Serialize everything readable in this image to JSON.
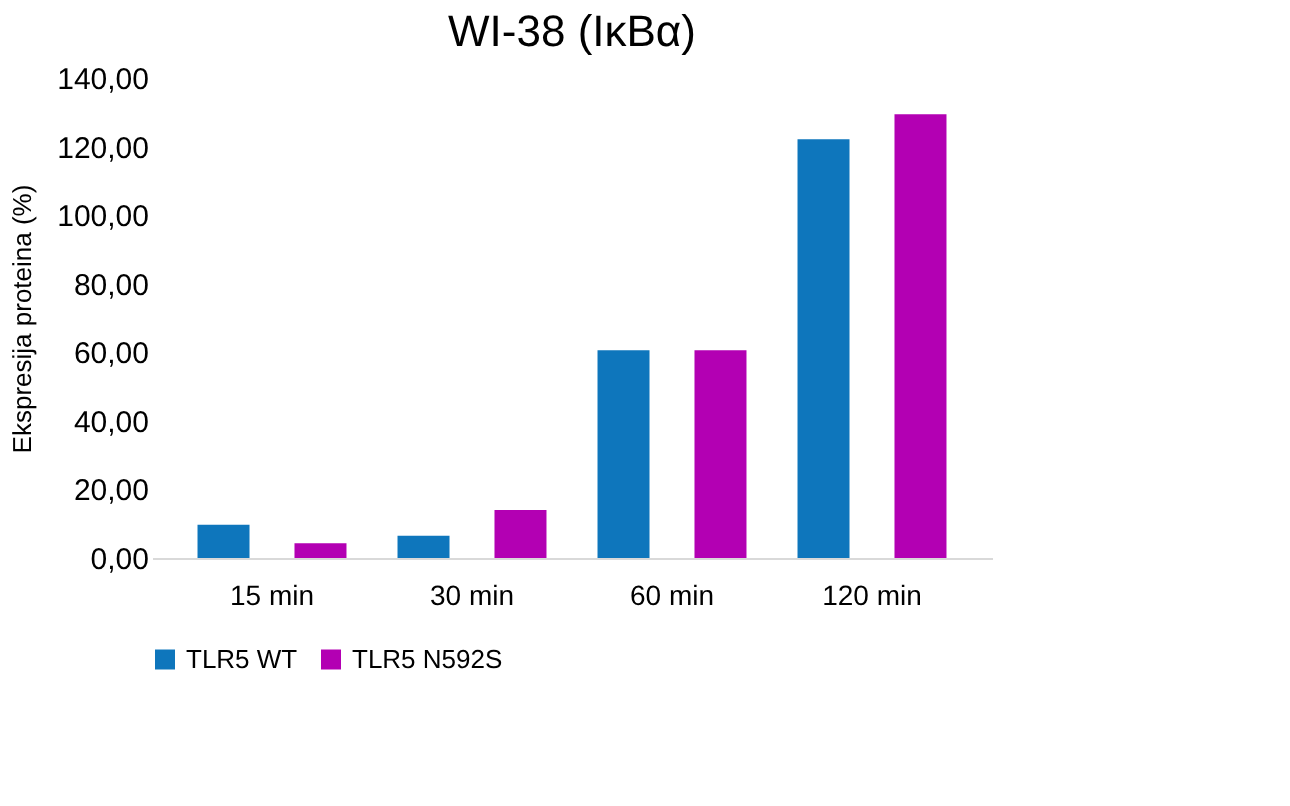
{
  "chart_data": {
    "type": "bar",
    "title": "WI-38 (IκBα)",
    "ylabel": "Ekspresija proteina (%)",
    "categories": [
      "15 min",
      "30 min",
      "60 min",
      "120 min"
    ],
    "series": [
      {
        "name": "TLR5 WT",
        "color": "#0e76bc",
        "values": [
          9.7,
          6.5,
          60.6,
          122.1
        ]
      },
      {
        "name": "TLR5 N592S",
        "color": "#b300b3",
        "values": [
          4.3,
          14.0,
          60.6,
          129.4
        ]
      }
    ],
    "ylim": [
      0,
      140
    ],
    "yticks": [
      {
        "value": 0,
        "label": "0,00"
      },
      {
        "value": 20,
        "label": "20,00"
      },
      {
        "value": 40,
        "label": "40,00"
      },
      {
        "value": 60,
        "label": "60,00"
      },
      {
        "value": 80,
        "label": "80,00"
      },
      {
        "value": 100,
        "label": "100,00"
      },
      {
        "value": 120,
        "label": "120,00"
      },
      {
        "value": 140,
        "label": "140,00"
      }
    ],
    "grid": false,
    "legend": "bottom"
  }
}
